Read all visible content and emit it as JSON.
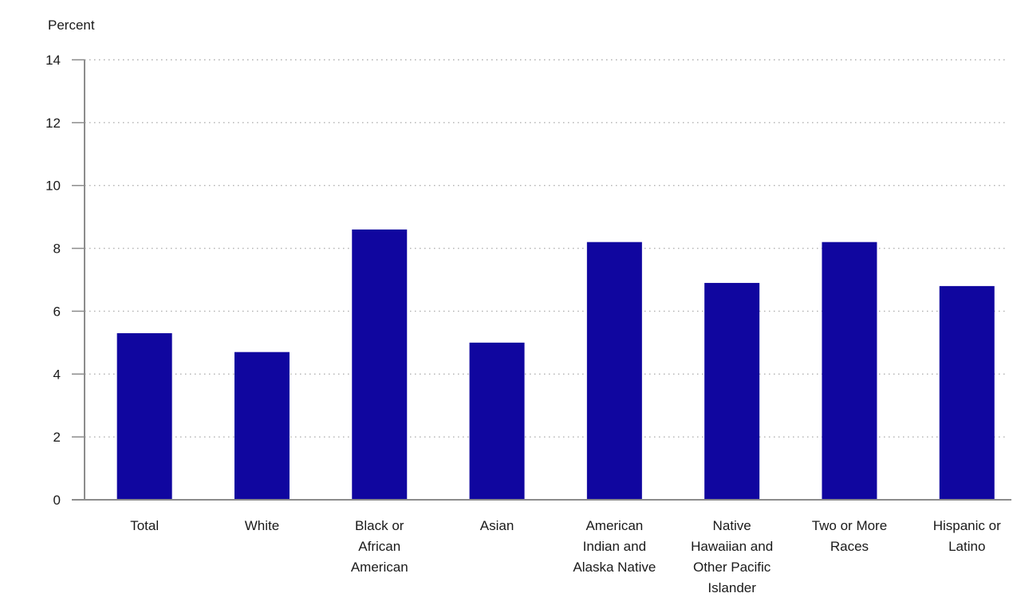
{
  "chart_data": {
    "type": "bar",
    "title": "",
    "xlabel": "",
    "ylabel": "Percent",
    "ylim": [
      0,
      14
    ],
    "yticks": [
      0,
      2,
      4,
      6,
      8,
      10,
      12,
      14
    ],
    "grid": true,
    "categories": [
      "Total",
      "White",
      "Black or African American",
      "Asian",
      "American Indian and Alaska Native",
      "Native Hawaiian and Other Pacific Islander",
      "Two or More Races",
      "Hispanic or Latino"
    ],
    "category_lines": [
      [
        "Total"
      ],
      [
        "White"
      ],
      [
        "Black or",
        "African",
        "American"
      ],
      [
        "Asian"
      ],
      [
        "American",
        "Indian and",
        "Alaska Native"
      ],
      [
        "Native",
        "Hawaiian and",
        "Other Pacific",
        "Islander"
      ],
      [
        "Two or More",
        "Races"
      ],
      [
        "Hispanic or",
        "Latino"
      ]
    ],
    "values": [
      5.3,
      4.7,
      8.6,
      5.0,
      8.2,
      6.9,
      8.2,
      6.8
    ],
    "colors": {
      "bar": "#10069f",
      "axis": "#8c8c8c",
      "grid": "#b0b0b0",
      "text": "#1a1a1a"
    }
  }
}
